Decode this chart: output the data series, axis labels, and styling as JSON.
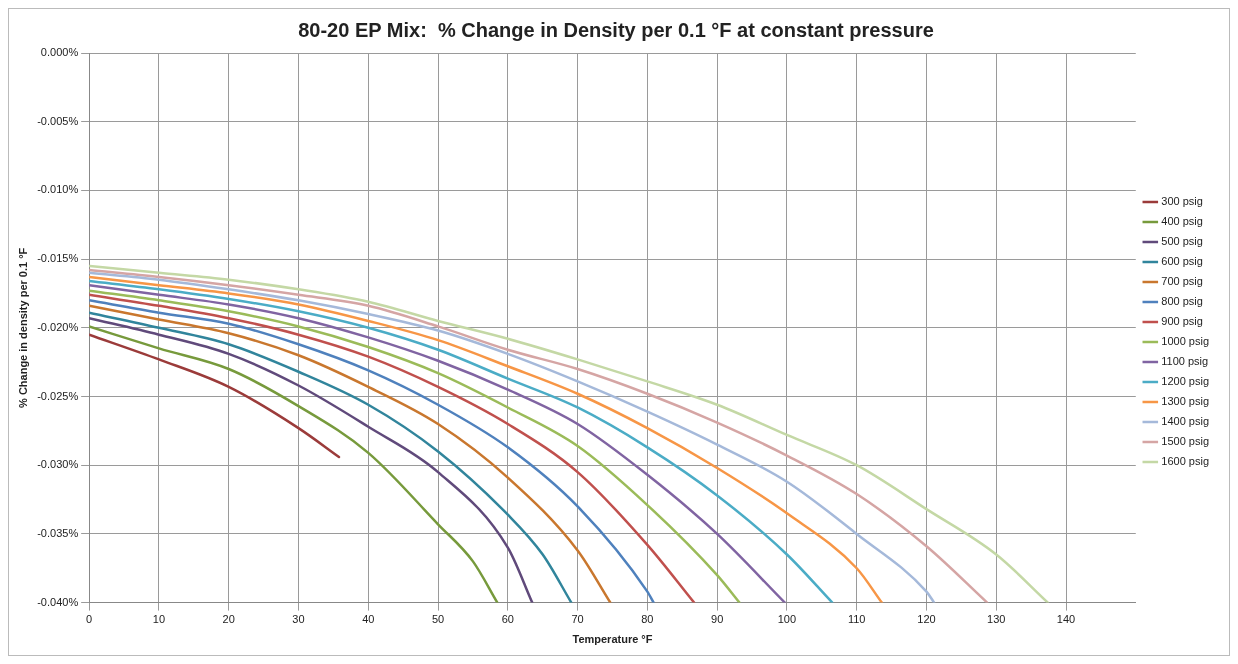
{
  "chart_data": {
    "type": "line",
    "title": "80-20 EP Mix:  % Change in Density per 0.1 °F at constant pressure",
    "xlabel": "Temperature °F",
    "ylabel": "% Change in density per 0.1 °F",
    "xlim": [
      0,
      150
    ],
    "xticks": [
      0,
      10,
      20,
      30,
      40,
      50,
      60,
      70,
      80,
      90,
      100,
      110,
      120,
      130,
      140
    ],
    "ylim": [
      -0.04,
      0
    ],
    "yticks": [
      {
        "value": 0,
        "label": "0.000%"
      },
      {
        "value": -0.005,
        "label": "-0.005%"
      },
      {
        "value": -0.01,
        "label": "-0.010%"
      },
      {
        "value": -0.015,
        "label": "-0.015%"
      },
      {
        "value": -0.02,
        "label": "-0.020%"
      },
      {
        "value": -0.025,
        "label": "-0.025%"
      },
      {
        "value": -0.03,
        "label": "-0.030%"
      },
      {
        "value": -0.035,
        "label": "-0.035%"
      },
      {
        "value": -0.04,
        "label": "-0.040%"
      }
    ],
    "grid": true,
    "legend": "right",
    "marker": "none",
    "line_style": "solid",
    "series": [
      {
        "name": "300 psig",
        "color": "#9b3b3a",
        "x": [
          0,
          10,
          20,
          30,
          35.8
        ],
        "values": [
          -0.0205,
          -0.0223,
          -0.0243,
          -0.0273,
          -0.0294
        ]
      },
      {
        "name": "400 psig",
        "color": "#779a3c",
        "x": [
          0,
          10,
          20,
          30,
          40,
          50,
          55,
          58.5
        ],
        "values": [
          -0.0199,
          -0.0215,
          -0.023,
          -0.0257,
          -0.0291,
          -0.0343,
          -0.037,
          -0.04
        ]
      },
      {
        "name": "500 psig",
        "color": "#604a7b",
        "x": [
          0,
          10,
          20,
          30,
          40,
          50,
          60,
          63.5
        ],
        "values": [
          -0.0193,
          -0.0205,
          -0.0219,
          -0.0242,
          -0.0272,
          -0.0305,
          -0.036,
          -0.04
        ]
      },
      {
        "name": "600 psig",
        "color": "#31859c",
        "x": [
          0,
          10,
          20,
          30,
          40,
          50,
          60,
          65,
          69.1
        ],
        "values": [
          -0.0189,
          -0.02,
          -0.0212,
          -0.0232,
          -0.0256,
          -0.029,
          -0.0336,
          -0.0365,
          -0.04
        ]
      },
      {
        "name": "700 psig",
        "color": "#c9772e",
        "x": [
          0,
          10,
          20,
          30,
          40,
          50,
          60,
          70,
          74.7
        ],
        "values": [
          -0.0184,
          -0.0194,
          -0.0204,
          -0.022,
          -0.0243,
          -0.027,
          -0.0309,
          -0.0362,
          -0.04
        ]
      },
      {
        "name": "800 psig",
        "color": "#4f81bd",
        "x": [
          0,
          10,
          20,
          30,
          40,
          50,
          60,
          70,
          80,
          80.9
        ],
        "values": [
          -0.018,
          -0.0189,
          -0.0197,
          -0.0212,
          -0.0231,
          -0.0256,
          -0.0287,
          -0.033,
          -0.0392,
          -0.04
        ]
      },
      {
        "name": "900 psig",
        "color": "#c0504d",
        "x": [
          0,
          10,
          20,
          30,
          40,
          50,
          60,
          70,
          80,
          86.7
        ],
        "values": [
          -0.0176,
          -0.0184,
          -0.0193,
          -0.0205,
          -0.0221,
          -0.0243,
          -0.027,
          -0.0305,
          -0.0358,
          -0.04
        ]
      },
      {
        "name": "1000 psig",
        "color": "#9bbb59",
        "x": [
          0,
          10,
          20,
          30,
          40,
          50,
          60,
          70,
          80,
          90,
          93.2
        ],
        "values": [
          -0.0173,
          -0.018,
          -0.0188,
          -0.0199,
          -0.0214,
          -0.0233,
          -0.0258,
          -0.0286,
          -0.0329,
          -0.038,
          -0.04
        ]
      },
      {
        "name": "1100 psig",
        "color": "#8064a2",
        "x": [
          0,
          10,
          20,
          30,
          40,
          50,
          60,
          70,
          80,
          90,
          99.7
        ],
        "values": [
          -0.0169,
          -0.0176,
          -0.0183,
          -0.0193,
          -0.0207,
          -0.0224,
          -0.0245,
          -0.027,
          -0.0307,
          -0.035,
          -0.04
        ]
      },
      {
        "name": "1200 psig",
        "color": "#4bacc6",
        "x": [
          0,
          10,
          20,
          30,
          40,
          50,
          60,
          70,
          80,
          90,
          100,
          106.5
        ],
        "values": [
          -0.0166,
          -0.0172,
          -0.0179,
          -0.0188,
          -0.02,
          -0.0216,
          -0.0237,
          -0.0258,
          -0.0287,
          -0.0322,
          -0.0365,
          -0.04
        ]
      },
      {
        "name": "1300 psig",
        "color": "#f79646",
        "x": [
          0,
          10,
          20,
          30,
          40,
          50,
          60,
          70,
          80,
          90,
          100,
          110,
          113.6
        ],
        "values": [
          -0.0163,
          -0.0169,
          -0.0175,
          -0.0183,
          -0.0195,
          -0.0209,
          -0.0228,
          -0.0248,
          -0.0273,
          -0.0302,
          -0.0335,
          -0.0375,
          -0.04
        ]
      },
      {
        "name": "1400 psig",
        "color": "#a5b9da",
        "x": [
          0,
          10,
          20,
          30,
          40,
          50,
          60,
          70,
          80,
          90,
          100,
          110,
          120,
          121.1
        ],
        "values": [
          -0.016,
          -0.0165,
          -0.0172,
          -0.018,
          -0.019,
          -0.0202,
          -0.0219,
          -0.0239,
          -0.0261,
          -0.0285,
          -0.0312,
          -0.035,
          -0.0392,
          -0.04
        ]
      },
      {
        "name": "1500 psig",
        "color": "#d5a5a4",
        "x": [
          0,
          10,
          20,
          30,
          40,
          50,
          60,
          70,
          80,
          90,
          100,
          110,
          120,
          128.7
        ],
        "values": [
          -0.0158,
          -0.0163,
          -0.0169,
          -0.0176,
          -0.0184,
          -0.0199,
          -0.0216,
          -0.023,
          -0.0248,
          -0.0269,
          -0.0293,
          -0.0321,
          -0.0359,
          -0.04
        ]
      },
      {
        "name": "1600 psig",
        "color": "#c4d8a5",
        "x": [
          0,
          10,
          20,
          30,
          40,
          50,
          60,
          70,
          80,
          90,
          100,
          110,
          120,
          130,
          137.4
        ],
        "values": [
          -0.0155,
          -0.016,
          -0.0165,
          -0.0172,
          -0.0181,
          -0.0195,
          -0.0208,
          -0.0223,
          -0.0239,
          -0.0256,
          -0.0278,
          -0.03,
          -0.0332,
          -0.0365,
          -0.04
        ]
      }
    ]
  }
}
